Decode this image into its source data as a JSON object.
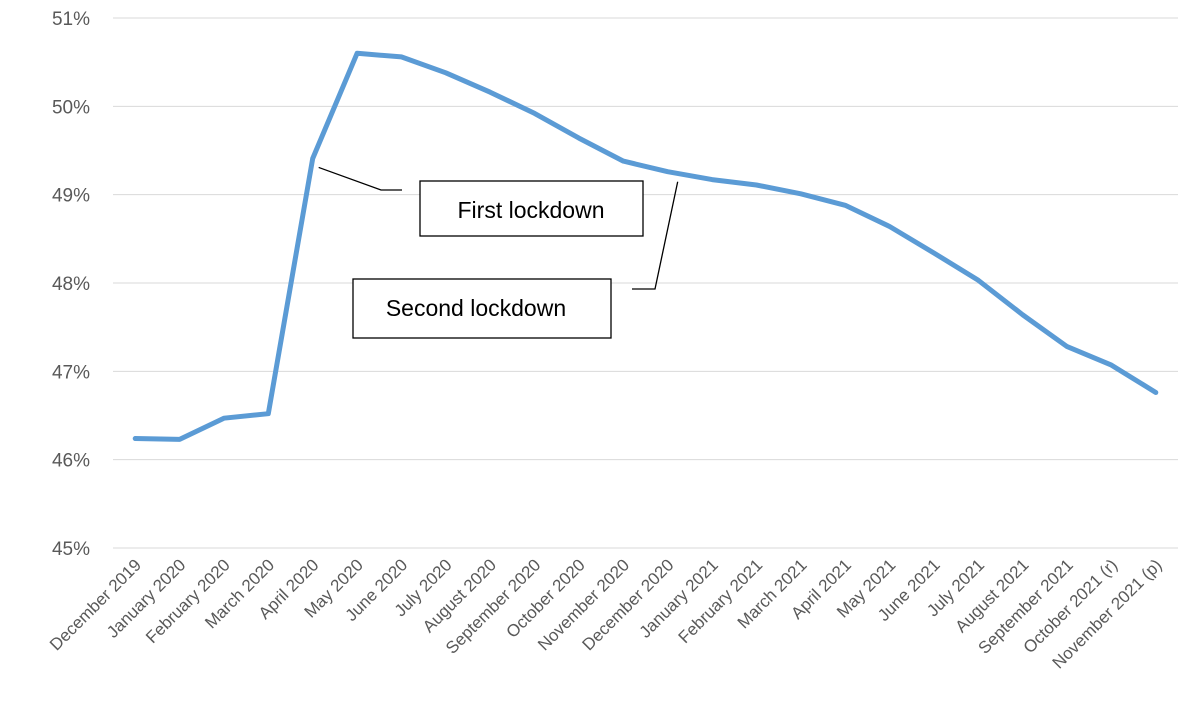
{
  "chart_data": {
    "type": "line",
    "title": "",
    "xlabel": "",
    "ylabel": "",
    "ylim": [
      45,
      51
    ],
    "y_ticks": [
      "45%",
      "46%",
      "47%",
      "48%",
      "49%",
      "50%",
      "51%"
    ],
    "grid": true,
    "legend": "none",
    "categories": [
      "December 2019",
      "January 2020",
      "February 2020",
      "March 2020",
      "April 2020",
      "May 2020",
      "June 2020",
      "July 2020",
      "August 2020",
      "September 2020",
      "October 2020",
      "November 2020",
      "December 2020",
      "January 2021",
      "February 2021",
      "March 2021",
      "April 2021",
      "May 2021",
      "June 2021",
      "July 2021",
      "August 2021",
      "September 2021",
      "October 2021 (r)",
      "November 2021 (p)"
    ],
    "series": [
      {
        "color": "#5b9bd5",
        "values": [
          46.24,
          46.23,
          46.47,
          46.52,
          49.41,
          50.6,
          50.56,
          50.38,
          50.16,
          49.92,
          49.64,
          49.38,
          49.26,
          49.17,
          49.11,
          49.01,
          48.88,
          48.64,
          48.34,
          48.03,
          47.64,
          47.28,
          47.07,
          46.76
        ]
      }
    ],
    "annotations": [
      {
        "text": "First lockdown",
        "category_index": 4,
        "value": 49.41
      },
      {
        "text": "Second lockdown",
        "category_index": 12,
        "value": 49.26
      }
    ]
  }
}
